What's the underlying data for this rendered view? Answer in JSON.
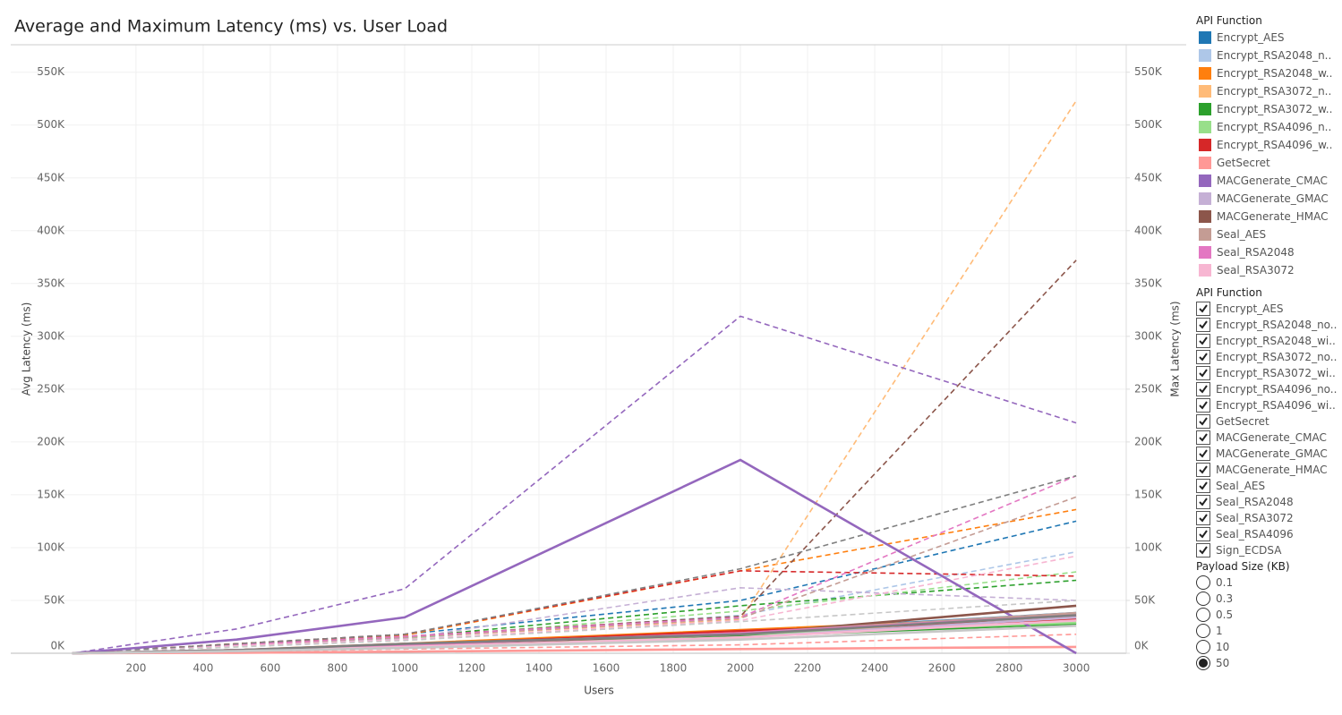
{
  "chart_data": {
    "type": "line",
    "title": "Average and Maximum Latency (ms) vs. User Load",
    "xlabel": "Users",
    "ylabel": "Avg Latency (ms)",
    "y2label": "Max Latency (ms)",
    "legend_title": "API Function",
    "x": [
      10,
      500,
      1000,
      2000,
      3000
    ],
    "xlim": [
      -173,
      3149
    ],
    "xticks": [
      200,
      400,
      600,
      800,
      1000,
      1200,
      1400,
      1600,
      1800,
      2000,
      2200,
      2400,
      2600,
      2800,
      3000
    ],
    "ylim": [
      0,
      576000
    ],
    "yticks": [
      {
        "value": 0,
        "label": "0K"
      },
      {
        "value": 50000,
        "label": "50K"
      },
      {
        "value": 100000,
        "label": "100K"
      },
      {
        "value": 150000,
        "label": "150K"
      },
      {
        "value": 200000,
        "label": "200K"
      },
      {
        "value": 250000,
        "label": "250K"
      },
      {
        "value": 300000,
        "label": "300K"
      },
      {
        "value": 350000,
        "label": "350K"
      },
      {
        "value": 400000,
        "label": "400K"
      },
      {
        "value": 450000,
        "label": "450K"
      },
      {
        "value": 500000,
        "label": "500K"
      },
      {
        "value": 550000,
        "label": "550K"
      }
    ],
    "y2lim": [
      0,
      576000
    ],
    "y2ticks": [
      {
        "value": 0,
        "label": "0K"
      },
      {
        "value": 50000,
        "label": "50K"
      },
      {
        "value": 100000,
        "label": "100K"
      },
      {
        "value": 150000,
        "label": "150K"
      },
      {
        "value": 200000,
        "label": "200K"
      },
      {
        "value": 250000,
        "label": "250K"
      },
      {
        "value": 300000,
        "label": "300K"
      },
      {
        "value": 350000,
        "label": "350K"
      },
      {
        "value": 400000,
        "label": "400K"
      },
      {
        "value": 450000,
        "label": "450K"
      },
      {
        "value": 500000,
        "label": "500K"
      },
      {
        "value": 550000,
        "label": "550K"
      }
    ],
    "grid": true,
    "series": [
      {
        "name": "Encrypt_AES",
        "color": "#1f77b4",
        "values": [
          0,
          3000,
          8000,
          20000,
          38000
        ],
        "max_values": [
          0,
          9000,
          18000,
          50000,
          125000
        ]
      },
      {
        "name": "Encrypt_RSA2048_n..",
        "color": "#aec7e8",
        "values": [
          0,
          2000,
          7000,
          18000,
          33000
        ],
        "max_values": [
          0,
          7000,
          14000,
          36000,
          96000
        ]
      },
      {
        "name": "Encrypt_RSA2048_w..",
        "color": "#ff7f0e",
        "values": [
          0,
          3000,
          9000,
          22000,
          35000
        ],
        "max_values": [
          0,
          9000,
          17000,
          78000,
          136000
        ]
      },
      {
        "name": "Encrypt_RSA3072_n..",
        "color": "#ffbb78",
        "values": [
          0,
          2000,
          7000,
          20000,
          31000
        ],
        "max_values": [
          0,
          7000,
          15000,
          32000,
          523000
        ]
      },
      {
        "name": "Encrypt_RSA3072_w..",
        "color": "#2ca02c",
        "values": [
          0,
          2000,
          6000,
          16000,
          28000
        ],
        "max_values": [
          0,
          8000,
          15000,
          45000,
          69000
        ]
      },
      {
        "name": "Encrypt_RSA4096_n..",
        "color": "#98df8a",
        "values": [
          0,
          2000,
          6000,
          18000,
          29000
        ],
        "max_values": [
          0,
          6000,
          14000,
          40000,
          77000
        ]
      },
      {
        "name": "Encrypt_RSA4096_w..",
        "color": "#d62728",
        "values": [
          0,
          3000,
          8000,
          21000,
          32000
        ],
        "max_values": [
          0,
          9000,
          18000,
          78000,
          73000
        ]
      },
      {
        "name": "GetSecret",
        "color": "#ff9896",
        "values": [
          0,
          500,
          1500,
          4000,
          6000
        ],
        "max_values": [
          0,
          1500,
          4000,
          8000,
          18000
        ]
      },
      {
        "name": "MACGenerate_CMAC",
        "color": "#9467bd",
        "values": [
          0,
          13000,
          34000,
          183000,
          0
        ],
        "max_values": [
          0,
          23000,
          61000,
          319000,
          218000
        ]
      },
      {
        "name": "MACGenerate_GMAC",
        "color": "#c5b0d5",
        "values": [
          0,
          2000,
          6000,
          15000,
          34000
        ],
        "max_values": [
          0,
          7000,
          14000,
          62000,
          50000
        ]
      },
      {
        "name": "MACGenerate_HMAC",
        "color": "#8c564b",
        "values": [
          0,
          3000,
          8000,
          18000,
          45000
        ],
        "max_values": [
          0,
          8000,
          16000,
          35000,
          372000
        ]
      },
      {
        "name": "Seal_AES",
        "color": "#c49c94",
        "values": [
          0,
          3000,
          8000,
          19000,
          38000
        ],
        "max_values": [
          0,
          8000,
          15000,
          33000,
          148000
        ]
      },
      {
        "name": "Seal_RSA2048",
        "color": "#e377c2",
        "values": [
          0,
          3000,
          8000,
          19000,
          36000
        ],
        "max_values": [
          0,
          8000,
          16000,
          34000,
          168000
        ]
      },
      {
        "name": "Seal_RSA3072",
        "color": "#f7b6d2",
        "values": [
          0,
          2000,
          6000,
          15000,
          31000
        ],
        "max_values": [
          0,
          7000,
          13000,
          31000,
          92000
        ]
      },
      {
        "name": "Seal_RSA4096",
        "color": "#7f7f7f",
        "values": [
          0,
          3000,
          9000,
          18000,
          36000
        ],
        "max_values": [
          0,
          9000,
          18000,
          80000,
          168000
        ]
      },
      {
        "name": "Sign_ECDSA",
        "color": "#c7c7c7",
        "values": [
          0,
          2000,
          5000,
          13000,
          26000
        ],
        "max_values": [
          0,
          6000,
          12000,
          30000,
          50000
        ]
      }
    ]
  },
  "filter": {
    "title": "API Function",
    "items": [
      "Encrypt_AES",
      "Encrypt_RSA2048_no..",
      "Encrypt_RSA2048_wi..",
      "Encrypt_RSA3072_no..",
      "Encrypt_RSA3072_wi..",
      "Encrypt_RSA4096_no..",
      "Encrypt_RSA4096_wi..",
      "GetSecret",
      "MACGenerate_CMAC",
      "MACGenerate_GMAC",
      "MACGenerate_HMAC",
      "Seal_AES",
      "Seal_RSA2048",
      "Seal_RSA3072",
      "Seal_RSA4096",
      "Sign_ECDSA"
    ]
  },
  "payload_size": {
    "title": "Payload Size (KB)",
    "options": [
      "0.1",
      "0.3",
      "0.5",
      "1",
      "10",
      "50"
    ],
    "selected": "50"
  }
}
